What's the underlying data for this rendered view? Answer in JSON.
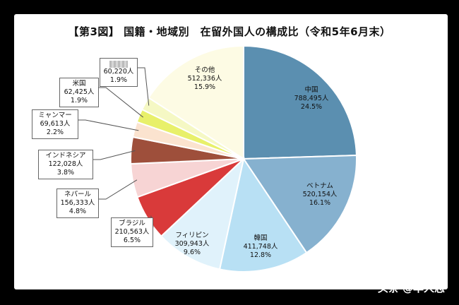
{
  "title": "【第3図】 国籍・地域別　在留外国人の構成比（令和5年6月末）",
  "watermark": "头条 @华人志",
  "chart_data": {
    "type": "pie",
    "title": "【第3図】 国籍・地域別　在留外国人の構成比（令和5年6月末）",
    "slices": [
      {
        "label": "中国",
        "count": "788,495人",
        "percent": "24.5%",
        "value": 24.5,
        "color": "#5b8fb0"
      },
      {
        "label": "ベトナム",
        "count": "520,154人",
        "percent": "16.1%",
        "value": 16.1,
        "color": "#86b1cf"
      },
      {
        "label": "韓国",
        "count": "411,748人",
        "percent": "12.8%",
        "value": 12.8,
        "color": "#b8e0f4"
      },
      {
        "label": "フィリピン",
        "count": "309,943人",
        "percent": "9.6%",
        "value": 9.6,
        "color": "#e0f2fb"
      },
      {
        "label": "ブラジル",
        "count": "210,563人",
        "percent": "6.5%",
        "value": 6.5,
        "color": "#d93a3a"
      },
      {
        "label": "ネパール",
        "count": "156,333人",
        "percent": "4.8%",
        "value": 4.8,
        "color": "#f7d4d4"
      },
      {
        "label": "インドネシア",
        "count": "122,028人",
        "percent": "3.8%",
        "value": 3.8,
        "color": "#9e4f3b"
      },
      {
        "label": "ミャンマー",
        "count": "69,613人",
        "percent": "2.2%",
        "value": 2.2,
        "color": "#fbe3cf"
      },
      {
        "label": "米国",
        "count": "62,425人",
        "percent": "1.9%",
        "value": 1.9,
        "color": "#e8f06a"
      },
      {
        "label": "",
        "count": "60,220人",
        "percent": "1.9%",
        "value": 1.9,
        "color": "#f5f8c4"
      },
      {
        "label": "その他",
        "count": "512,336人",
        "percent": "15.9%",
        "value": 15.9,
        "color": "#fdfbe4"
      }
    ]
  }
}
